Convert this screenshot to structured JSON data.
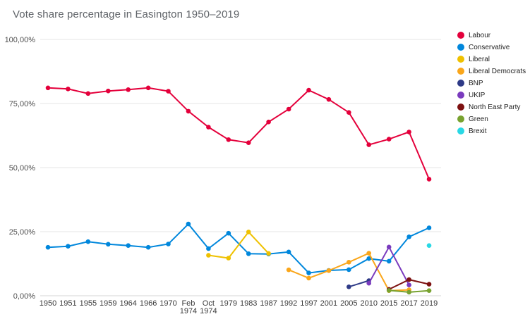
{
  "chart_data": {
    "type": "line",
    "title": "Vote share percentage in Easington 1950–2019",
    "xlabel": "",
    "ylabel": "",
    "ylim": [
      0,
      100
    ],
    "yticks": [
      0,
      25,
      50,
      75,
      100
    ],
    "ytick_labels": [
      "0,00%",
      "25,00%",
      "50,00%",
      "75,00%",
      "100,00%"
    ],
    "grid": true,
    "legend_position": "right",
    "categories": [
      "1950",
      "1951",
      "1955",
      "1959",
      "1964",
      "1966",
      "1970",
      "Feb 1974",
      "Oct 1974",
      "1979",
      "1983",
      "1987",
      "1992",
      "1997",
      "2001",
      "2005",
      "2010",
      "2015",
      "2017",
      "2019"
    ],
    "series": [
      {
        "name": "Labour",
        "color": "#E4003B",
        "values": [
          81.1,
          80.7,
          78.9,
          79.9,
          80.4,
          81.1,
          79.8,
          72.0,
          65.8,
          60.9,
          59.7,
          67.8,
          72.8,
          80.2,
          76.6,
          71.5,
          58.9,
          61.1,
          63.9,
          45.5
        ]
      },
      {
        "name": "Conservative",
        "color": "#0087DC",
        "values": [
          18.9,
          19.3,
          21.1,
          20.1,
          19.6,
          18.9,
          20.2,
          28.0,
          18.4,
          24.4,
          16.4,
          16.3,
          17.1,
          8.9,
          9.9,
          10.2,
          14.5,
          13.5,
          23.0,
          26.5
        ]
      },
      {
        "name": "Liberal",
        "color": "#EFC100",
        "values": [
          null,
          null,
          null,
          null,
          null,
          null,
          null,
          null,
          15.8,
          14.7,
          24.9,
          16.5,
          null,
          null,
          null,
          null,
          null,
          null,
          null,
          null
        ]
      },
      {
        "name": "Liberal Democrats",
        "color": "#FAA61A",
        "values": [
          null,
          null,
          null,
          null,
          null,
          null,
          null,
          null,
          null,
          null,
          null,
          null,
          10.1,
          6.9,
          9.8,
          13.1,
          16.6,
          2.0,
          2.3,
          null
        ]
      },
      {
        "name": "BNP",
        "color": "#2E3A87",
        "values": [
          null,
          null,
          null,
          null,
          null,
          null,
          null,
          null,
          null,
          null,
          null,
          null,
          null,
          null,
          null,
          3.5,
          5.9,
          null,
          null,
          null
        ]
      },
      {
        "name": "UKIP",
        "color": "#7A3BBE",
        "values": [
          null,
          null,
          null,
          null,
          null,
          null,
          null,
          null,
          null,
          null,
          null,
          null,
          null,
          null,
          null,
          null,
          4.9,
          19.0,
          4.2,
          null
        ]
      },
      {
        "name": "North East Party",
        "color": "#7D1111",
        "values": [
          null,
          null,
          null,
          null,
          null,
          null,
          null,
          null,
          null,
          null,
          null,
          null,
          null,
          null,
          null,
          null,
          null,
          2.5,
          6.3,
          4.5
        ]
      },
      {
        "name": "Green",
        "color": "#78A22F",
        "values": [
          null,
          null,
          null,
          null,
          null,
          null,
          null,
          null,
          null,
          null,
          null,
          null,
          null,
          null,
          null,
          null,
          null,
          2.1,
          1.4,
          2.0
        ]
      },
      {
        "name": "Brexit",
        "color": "#29D8E5",
        "values": [
          null,
          null,
          null,
          null,
          null,
          null,
          null,
          null,
          null,
          null,
          null,
          null,
          null,
          null,
          null,
          null,
          null,
          null,
          null,
          19.6
        ]
      }
    ]
  }
}
